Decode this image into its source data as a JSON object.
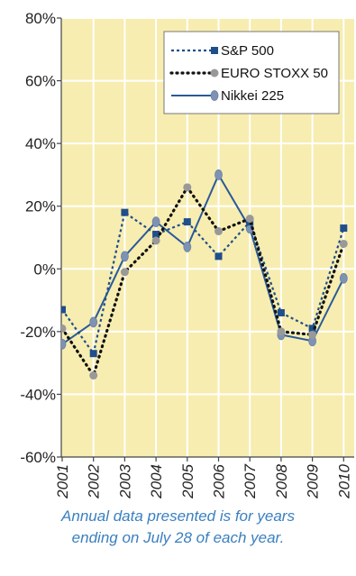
{
  "chart_data": {
    "type": "line",
    "categories": [
      "2001",
      "2002",
      "2003",
      "2004",
      "2005",
      "2006",
      "2007",
      "2008",
      "2009",
      "2010"
    ],
    "ylim": [
      -60,
      80
    ],
    "yticks": [
      -60,
      -40,
      -20,
      0,
      20,
      40,
      60,
      80
    ],
    "ytick_labels": [
      "-60%",
      "-40%",
      "-20%",
      "0%",
      "20%",
      "40%",
      "60%",
      "80%"
    ],
    "grid": true,
    "legend_position": "top-right",
    "plot_background": "#f7edb0",
    "series": [
      {
        "name": "S&P 500",
        "values": [
          -13,
          -27,
          18,
          11,
          15,
          4,
          15,
          -14,
          -19,
          13
        ],
        "color": "#1f4e8c",
        "style": "dotted",
        "marker": "square"
      },
      {
        "name": "EURO STOXX 50",
        "values": [
          -19,
          -34,
          -1,
          9,
          26,
          12,
          16,
          -20,
          -21,
          8
        ],
        "color": "#111111",
        "style": "dotted",
        "marker": "circle"
      },
      {
        "name": "Nikkei 225",
        "values": [
          -24,
          -17,
          4,
          15,
          7,
          30,
          13,
          -21,
          -23,
          -3
        ],
        "color": "#2a5a9a",
        "style": "solid",
        "marker": "diamond"
      }
    ]
  },
  "caption": {
    "line1": "Annual data presented is for years",
    "line2": "ending on July 28 of each year."
  }
}
